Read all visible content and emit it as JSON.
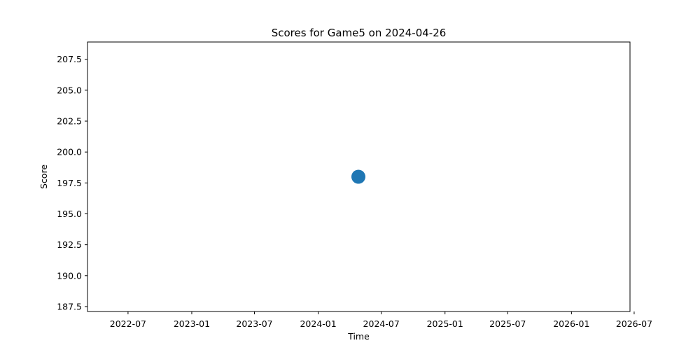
{
  "chart_data": {
    "type": "scatter",
    "title": "Scores for Game5 on 2024-04-26",
    "xlabel": "Time",
    "ylabel": "Score",
    "x_ticks": [
      "2022-07",
      "2023-01",
      "2023-07",
      "2024-01",
      "2024-07",
      "2025-01",
      "2025-07",
      "2026-01",
      "2026-07"
    ],
    "y_ticks": [
      "187.5",
      "190.0",
      "192.5",
      "195.0",
      "197.5",
      "200.0",
      "202.5",
      "205.0",
      "207.5"
    ],
    "xlim": [
      "2022-03-06",
      "2026-06-19"
    ],
    "ylim": [
      187.1,
      208.9
    ],
    "points": [
      {
        "x": "2024-04-26",
        "y": 198
      }
    ],
    "color": "#1f77b4",
    "grid": false,
    "legend": "none"
  }
}
